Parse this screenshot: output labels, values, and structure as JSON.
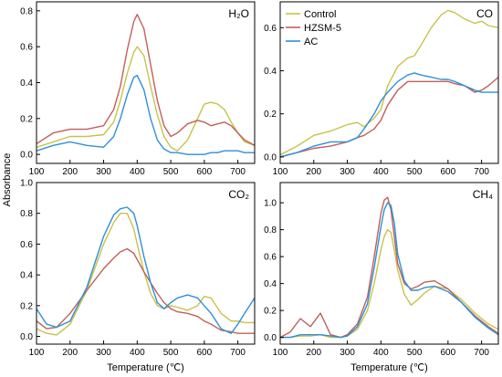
{
  "figure": {
    "ylabel": "Absorbance",
    "colors": {
      "Control": "#c8c24a",
      "HZSM-5": "#c0605a",
      "AC": "#2f8fd8"
    }
  },
  "chart_data": [
    {
      "type": "line",
      "title": "H₂O",
      "xlabel": "",
      "xlim": [
        100,
        750
      ],
      "ylim": [
        -0.05,
        0.85
      ],
      "xticks": [
        "100",
        "200",
        "300",
        "400",
        "500",
        "600",
        "700"
      ],
      "xtick_values": [
        100,
        200,
        300,
        400,
        500,
        600,
        700
      ],
      "yticks": [
        "0.0",
        "0.2",
        "0.4",
        "0.6",
        "0.8"
      ],
      "ytick_values": [
        0,
        0.2,
        0.4,
        0.6,
        0.8
      ],
      "series": [
        {
          "name": "Control",
          "x": [
            100,
            150,
            200,
            250,
            300,
            330,
            350,
            370,
            390,
            400,
            420,
            440,
            460,
            480,
            500,
            520,
            550,
            580,
            600,
            620,
            640,
            660,
            680,
            700,
            720,
            750
          ],
          "y": [
            0.04,
            0.07,
            0.1,
            0.1,
            0.11,
            0.18,
            0.3,
            0.45,
            0.57,
            0.6,
            0.55,
            0.38,
            0.22,
            0.1,
            0.04,
            0.02,
            0.08,
            0.2,
            0.28,
            0.29,
            0.28,
            0.25,
            0.18,
            0.12,
            0.07,
            0.05
          ]
        },
        {
          "name": "HZSM-5",
          "x": [
            100,
            150,
            200,
            250,
            300,
            330,
            350,
            370,
            390,
            400,
            420,
            440,
            460,
            480,
            500,
            520,
            550,
            580,
            600,
            620,
            640,
            660,
            680,
            700,
            720,
            750
          ],
          "y": [
            0.06,
            0.12,
            0.14,
            0.14,
            0.16,
            0.25,
            0.38,
            0.58,
            0.74,
            0.78,
            0.7,
            0.5,
            0.3,
            0.16,
            0.1,
            0.12,
            0.17,
            0.19,
            0.18,
            0.16,
            0.17,
            0.18,
            0.16,
            0.12,
            0.08,
            0.05
          ]
        },
        {
          "name": "AC",
          "x": [
            100,
            150,
            200,
            250,
            300,
            330,
            350,
            370,
            390,
            400,
            420,
            440,
            460,
            480,
            500,
            520,
            550,
            580,
            600,
            620,
            640,
            660,
            680,
            700,
            720,
            750
          ],
          "y": [
            0.02,
            0.05,
            0.07,
            0.05,
            0.04,
            0.1,
            0.2,
            0.33,
            0.43,
            0.44,
            0.36,
            0.2,
            0.08,
            0.03,
            0.01,
            0.01,
            0.0,
            0.0,
            0.0,
            0.01,
            0.01,
            0.02,
            0.02,
            0.02,
            0.01,
            0.01
          ]
        }
      ]
    },
    {
      "type": "line",
      "title": "CO",
      "xlabel": "",
      "xlim": [
        100,
        750
      ],
      "ylim": [
        -0.03,
        0.72
      ],
      "xticks": [
        "100",
        "200",
        "300",
        "400",
        "500",
        "600",
        "700"
      ],
      "xtick_values": [
        100,
        200,
        300,
        400,
        500,
        600,
        700
      ],
      "yticks": [
        "0.0",
        "0.2",
        "0.4",
        "0.6"
      ],
      "ytick_values": [
        0,
        0.2,
        0.4,
        0.6
      ],
      "legend": [
        "Control",
        "HZSM-5",
        "AC"
      ],
      "legend_position": "top-left",
      "series": [
        {
          "name": "Control",
          "x": [
            100,
            150,
            200,
            250,
            300,
            330,
            350,
            380,
            400,
            420,
            450,
            480,
            500,
            520,
            550,
            580,
            600,
            620,
            650,
            680,
            700,
            720,
            750
          ],
          "y": [
            0.01,
            0.05,
            0.1,
            0.12,
            0.15,
            0.16,
            0.14,
            0.18,
            0.22,
            0.33,
            0.42,
            0.46,
            0.47,
            0.52,
            0.6,
            0.66,
            0.68,
            0.67,
            0.64,
            0.62,
            0.63,
            0.61,
            0.6
          ]
        },
        {
          "name": "HZSM-5",
          "x": [
            100,
            150,
            200,
            250,
            300,
            330,
            350,
            380,
            400,
            420,
            450,
            480,
            500,
            520,
            550,
            580,
            600,
            620,
            650,
            680,
            700,
            720,
            750
          ],
          "y": [
            0.0,
            0.02,
            0.04,
            0.05,
            0.07,
            0.09,
            0.1,
            0.13,
            0.17,
            0.24,
            0.31,
            0.35,
            0.35,
            0.35,
            0.35,
            0.35,
            0.35,
            0.34,
            0.33,
            0.3,
            0.31,
            0.33,
            0.37
          ]
        },
        {
          "name": "AC",
          "x": [
            100,
            150,
            200,
            250,
            300,
            330,
            350,
            380,
            400,
            420,
            450,
            480,
            500,
            520,
            550,
            580,
            600,
            620,
            650,
            680,
            700,
            720,
            750
          ],
          "y": [
            0.0,
            0.02,
            0.05,
            0.07,
            0.07,
            0.09,
            0.13,
            0.2,
            0.26,
            0.3,
            0.35,
            0.38,
            0.39,
            0.38,
            0.37,
            0.36,
            0.36,
            0.35,
            0.33,
            0.31,
            0.3,
            0.3,
            0.3
          ]
        }
      ]
    },
    {
      "type": "line",
      "title": "CO₂",
      "xlabel": "Temperature (℃)",
      "xlim": [
        100,
        750
      ],
      "ylim": [
        -0.05,
        1.0
      ],
      "xticks": [
        "100",
        "200",
        "300",
        "400",
        "500",
        "600",
        "700"
      ],
      "xtick_values": [
        100,
        200,
        300,
        400,
        500,
        600,
        700
      ],
      "yticks": [
        "0.0",
        "0.2",
        "0.4",
        "0.6",
        "0.8",
        "1.0"
      ],
      "ytick_values": [
        0,
        0.2,
        0.4,
        0.6,
        0.8,
        1.0
      ],
      "series": [
        {
          "name": "Control",
          "x": [
            100,
            130,
            160,
            200,
            250,
            300,
            330,
            350,
            370,
            390,
            400,
            420,
            440,
            460,
            480,
            500,
            520,
            550,
            580,
            600,
            620,
            650,
            680,
            700,
            720,
            750
          ],
          "y": [
            0.05,
            0.02,
            0.01,
            0.08,
            0.3,
            0.6,
            0.74,
            0.8,
            0.8,
            0.7,
            0.6,
            0.42,
            0.28,
            0.2,
            0.18,
            0.2,
            0.19,
            0.17,
            0.2,
            0.26,
            0.25,
            0.15,
            0.1,
            0.1,
            0.09,
            0.09
          ]
        },
        {
          "name": "HZSM-5",
          "x": [
            100,
            130,
            160,
            200,
            250,
            300,
            330,
            350,
            370,
            390,
            400,
            420,
            440,
            460,
            480,
            500,
            520,
            550,
            580,
            600,
            620,
            650,
            680,
            700,
            720,
            750
          ],
          "y": [
            0.1,
            0.05,
            0.06,
            0.15,
            0.3,
            0.44,
            0.51,
            0.55,
            0.57,
            0.54,
            0.5,
            0.42,
            0.35,
            0.28,
            0.22,
            0.18,
            0.16,
            0.15,
            0.13,
            0.1,
            0.08,
            0.04,
            0.03,
            0.02,
            0.02,
            0.02
          ]
        },
        {
          "name": "AC",
          "x": [
            100,
            130,
            160,
            200,
            250,
            300,
            330,
            350,
            370,
            390,
            400,
            420,
            440,
            460,
            480,
            500,
            520,
            550,
            580,
            600,
            620,
            650,
            680,
            700,
            720,
            750
          ],
          "y": [
            0.18,
            0.08,
            0.06,
            0.1,
            0.32,
            0.65,
            0.79,
            0.83,
            0.84,
            0.8,
            0.72,
            0.52,
            0.35,
            0.22,
            0.18,
            0.22,
            0.25,
            0.27,
            0.25,
            0.2,
            0.15,
            0.05,
            0.02,
            0.08,
            0.15,
            0.25
          ]
        }
      ]
    },
    {
      "type": "line",
      "title": "CH₄",
      "xlabel": "Temperature (℃)",
      "xlim": [
        100,
        750
      ],
      "ylim": [
        -0.05,
        1.15
      ],
      "xticks": [
        "100",
        "200",
        "300",
        "400",
        "500",
        "600",
        "700"
      ],
      "xtick_values": [
        100,
        200,
        300,
        400,
        500,
        600,
        700
      ],
      "yticks": [
        "0.0",
        "0.2",
        "0.4",
        "0.6",
        "0.8",
        "1.0"
      ],
      "ytick_values": [
        0,
        0.2,
        0.4,
        0.6,
        0.8,
        1.0
      ],
      "series": [
        {
          "name": "Control",
          "x": [
            100,
            130,
            160,
            190,
            220,
            250,
            280,
            300,
            330,
            360,
            380,
            400,
            410,
            420,
            430,
            440,
            450,
            470,
            490,
            510,
            530,
            560,
            600,
            640,
            680,
            720,
            750
          ],
          "y": [
            0.0,
            0.0,
            0.01,
            0.01,
            0.02,
            0.0,
            0.0,
            0.01,
            0.06,
            0.2,
            0.4,
            0.65,
            0.75,
            0.8,
            0.78,
            0.65,
            0.5,
            0.32,
            0.24,
            0.28,
            0.33,
            0.38,
            0.36,
            0.28,
            0.18,
            0.1,
            0.06
          ]
        },
        {
          "name": "HZSM-5",
          "x": [
            100,
            130,
            160,
            190,
            220,
            250,
            280,
            300,
            330,
            360,
            380,
            400,
            410,
            420,
            430,
            440,
            450,
            470,
            490,
            510,
            530,
            560,
            600,
            640,
            680,
            720,
            750
          ],
          "y": [
            0.0,
            0.04,
            0.14,
            0.08,
            0.18,
            0.02,
            0.0,
            0.02,
            0.1,
            0.3,
            0.6,
            0.92,
            1.02,
            1.04,
            0.95,
            0.75,
            0.55,
            0.4,
            0.36,
            0.38,
            0.41,
            0.42,
            0.36,
            0.26,
            0.16,
            0.08,
            0.03
          ]
        },
        {
          "name": "AC",
          "x": [
            100,
            130,
            160,
            190,
            220,
            250,
            280,
            300,
            330,
            360,
            380,
            400,
            410,
            420,
            430,
            440,
            450,
            470,
            490,
            510,
            530,
            560,
            600,
            640,
            680,
            720,
            750
          ],
          "y": [
            0.0,
            0.0,
            0.02,
            0.02,
            0.02,
            0.01,
            0.0,
            0.01,
            0.08,
            0.25,
            0.52,
            0.82,
            0.95,
            1.0,
            0.98,
            0.85,
            0.62,
            0.42,
            0.35,
            0.35,
            0.37,
            0.38,
            0.34,
            0.26,
            0.15,
            0.07,
            0.02
          ]
        }
      ]
    }
  ]
}
